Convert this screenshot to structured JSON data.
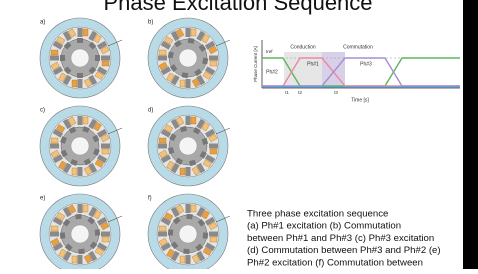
{
  "title": "Phase Excitation Sequence",
  "diagrams": [
    {
      "label": "a)"
    },
    {
      "label": "b)"
    },
    {
      "label": "c)"
    },
    {
      "label": "d)"
    },
    {
      "label": "e)"
    },
    {
      "label": "f)"
    }
  ],
  "graph": {
    "y_label": "Phase Current [A]",
    "x_label": "Time [s]",
    "i_ref": "Iref",
    "annotations": [
      "Conduction",
      "Commutation"
    ],
    "phases": [
      "Ph#2",
      "Ph#1",
      "Ph#3"
    ],
    "times": [
      "t1",
      "t2",
      "t3"
    ]
  },
  "caption": {
    "lines": [
      "Three phase excitation sequence",
      "(a) Ph#1 excitation (b) Commutation",
      "between Ph#1 and Ph#3 (c) Ph#3 excitation",
      "(d) Commutation between Ph#3 and Ph#2 (e)",
      "Ph#2 excitation (f) Commutation between"
    ]
  }
}
